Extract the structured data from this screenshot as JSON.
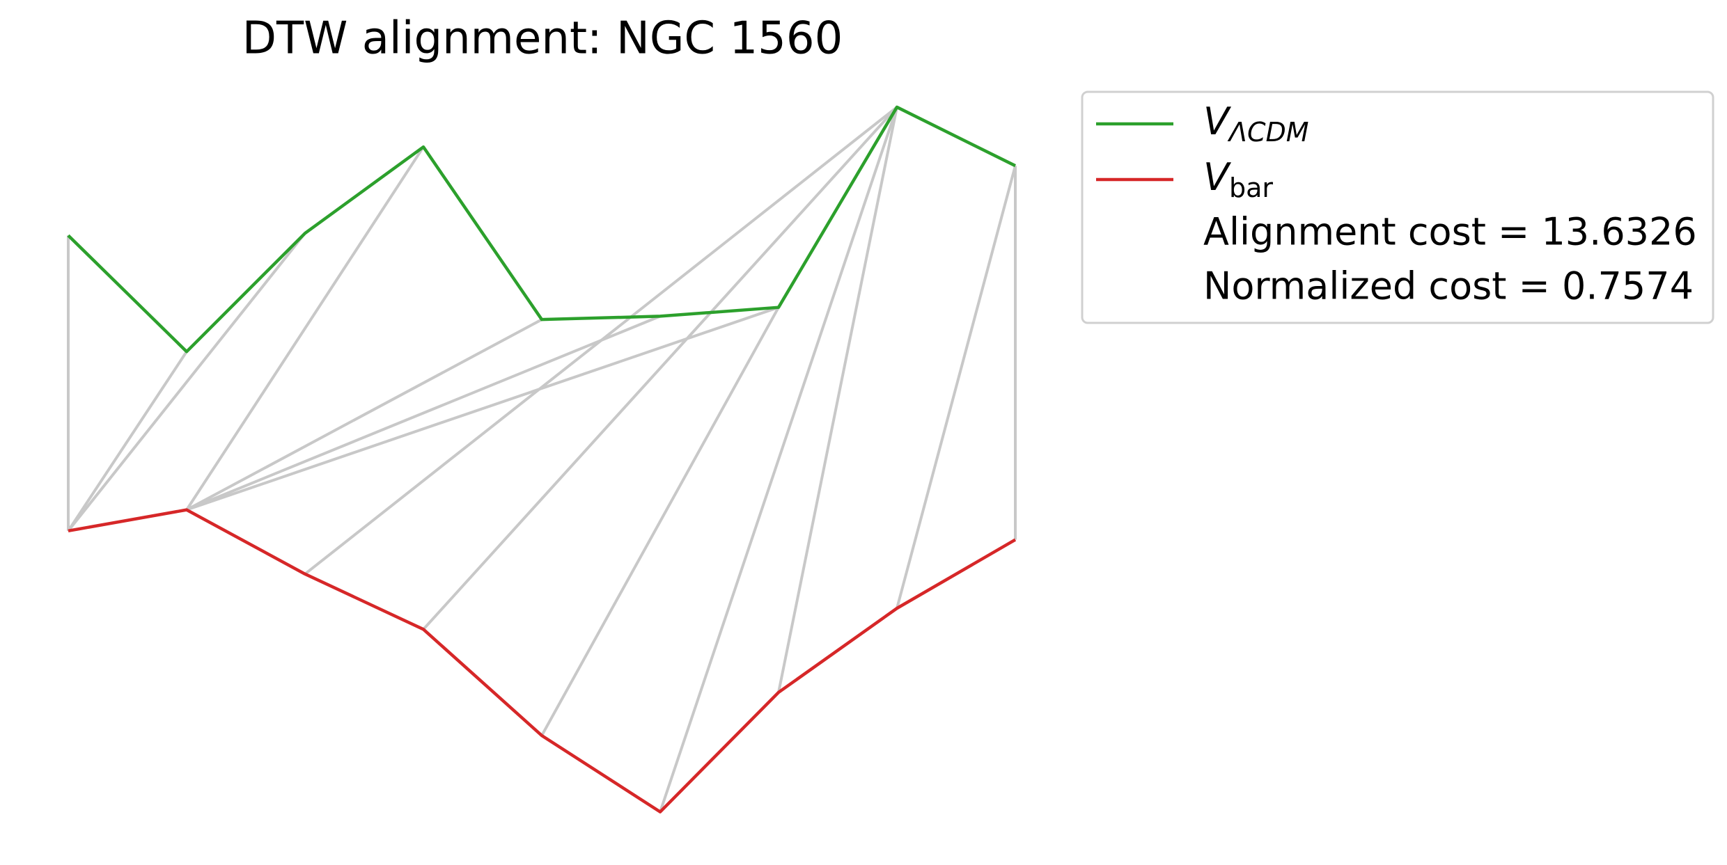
{
  "chart_data": {
    "type": "alignment",
    "title": "DTW alignment: NGC 1560",
    "x": [
      0,
      1,
      2,
      3,
      4,
      5,
      6,
      7,
      8
    ],
    "xlim": [
      0,
      8
    ],
    "ylim": [
      0,
      6.9
    ],
    "series": [
      {
        "name": "V",
        "subscript": "ΛCDM",
        "italic_subscript": true,
        "color": "#2ca02c",
        "values": [
          5.47,
          4.42,
          5.49,
          6.27,
          4.71,
          4.74,
          4.82,
          6.63,
          6.1
        ]
      },
      {
        "name": "V",
        "subscript": "bar",
        "italic_subscript": false,
        "color": "#d62728",
        "values": [
          2.8,
          2.99,
          2.41,
          1.91,
          0.95,
          0.26,
          1.34,
          2.1,
          2.72
        ]
      }
    ],
    "path": [
      [
        0,
        0
      ],
      [
        1,
        0
      ],
      [
        2,
        0
      ],
      [
        3,
        1
      ],
      [
        4,
        1
      ],
      [
        5,
        1
      ],
      [
        6,
        1
      ],
      [
        7,
        2
      ],
      [
        7,
        3
      ],
      [
        6,
        4
      ],
      [
        7,
        5
      ],
      [
        7,
        6
      ],
      [
        8,
        7
      ],
      [
        8,
        8
      ]
    ],
    "path_color": "#c8c8c8",
    "legend_notes": [
      "Alignment cost = 13.6326",
      "Normalized cost = 0.7574"
    ],
    "legend": "upper right"
  }
}
